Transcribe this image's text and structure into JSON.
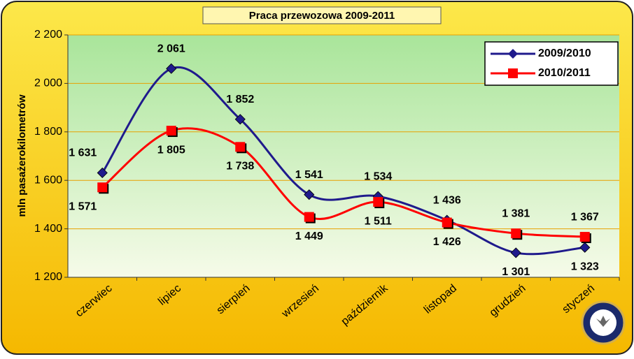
{
  "chart_data": {
    "type": "line",
    "title": "Praca przewozowa 2009-2011",
    "y_label": "mln pasażerokilometrów",
    "categories": [
      "czerwiec",
      "lipiec",
      "sierpień",
      "wrzesień",
      "październik",
      "listopad",
      "grudzień",
      "styczeń"
    ],
    "series": [
      {
        "name": "2009/2010",
        "color": "#1f1a8c",
        "marker": "diamond",
        "values": [
          1631,
          2061,
          1852,
          1541,
          1534,
          1436,
          1301,
          1323
        ],
        "value_labels": [
          "1 631",
          "2 061",
          "1 852",
          "1 541",
          "1 534",
          "1 436",
          "1 301",
          "1 323"
        ]
      },
      {
        "name": "2010/2011",
        "color": "#ff0000",
        "marker": "square",
        "values": [
          1571,
          1805,
          1738,
          1449,
          1511,
          1426,
          1381,
          1367
        ],
        "value_labels": [
          "1 571",
          "1 805",
          "1 738",
          "1 449",
          "1 511",
          "1 426",
          "1 381",
          "1 367"
        ]
      }
    ],
    "ylim": [
      1200,
      2200
    ],
    "yticks": [
      {
        "value": 1200,
        "label": "1 200"
      },
      {
        "value": 1400,
        "label": "1 400"
      },
      {
        "value": 1600,
        "label": "1 600"
      },
      {
        "value": 1800,
        "label": "1 800"
      },
      {
        "value": 2000,
        "label": "2 000"
      },
      {
        "value": 2200,
        "label": "2 200"
      }
    ],
    "grid": true,
    "legend": "top-right"
  }
}
